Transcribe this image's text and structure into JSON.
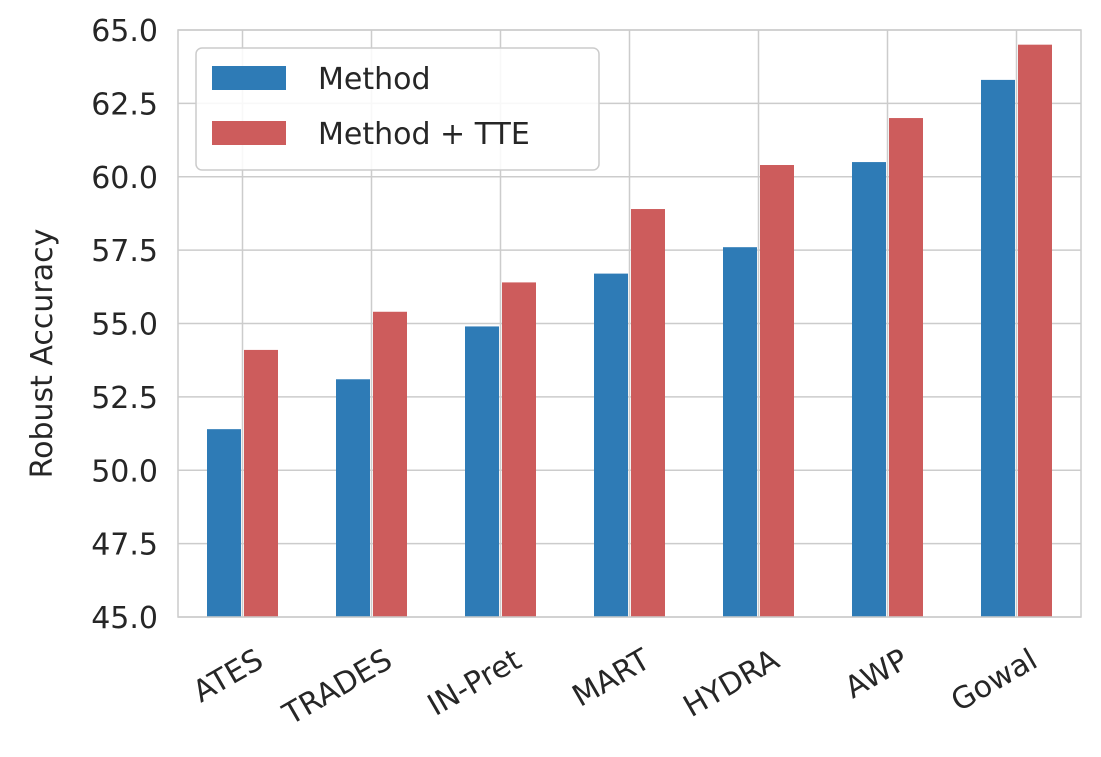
{
  "chart_data": {
    "type": "bar",
    "title": "",
    "xlabel": "",
    "ylabel": "Robust Accuracy",
    "ylim": [
      45.0,
      65.0
    ],
    "yticks": [
      "45.0",
      "47.5",
      "50.0",
      "52.5",
      "55.0",
      "57.5",
      "60.0",
      "62.5",
      "65.0"
    ],
    "categories": [
      "ATES",
      "TRADES",
      "IN-Pret",
      "MART",
      "HYDRA",
      "AWP",
      "Gowal"
    ],
    "series": [
      {
        "name": "Method",
        "color": "#2e7bb6",
        "values": [
          51.4,
          53.1,
          54.9,
          56.7,
          57.6,
          60.5,
          63.3
        ]
      },
      {
        "name": "Method + TTE",
        "color": "#cd5c5c",
        "values": [
          54.1,
          55.4,
          56.4,
          58.9,
          60.4,
          62.0,
          64.5
        ]
      }
    ],
    "grid": true,
    "legend_position": "top-left"
  }
}
